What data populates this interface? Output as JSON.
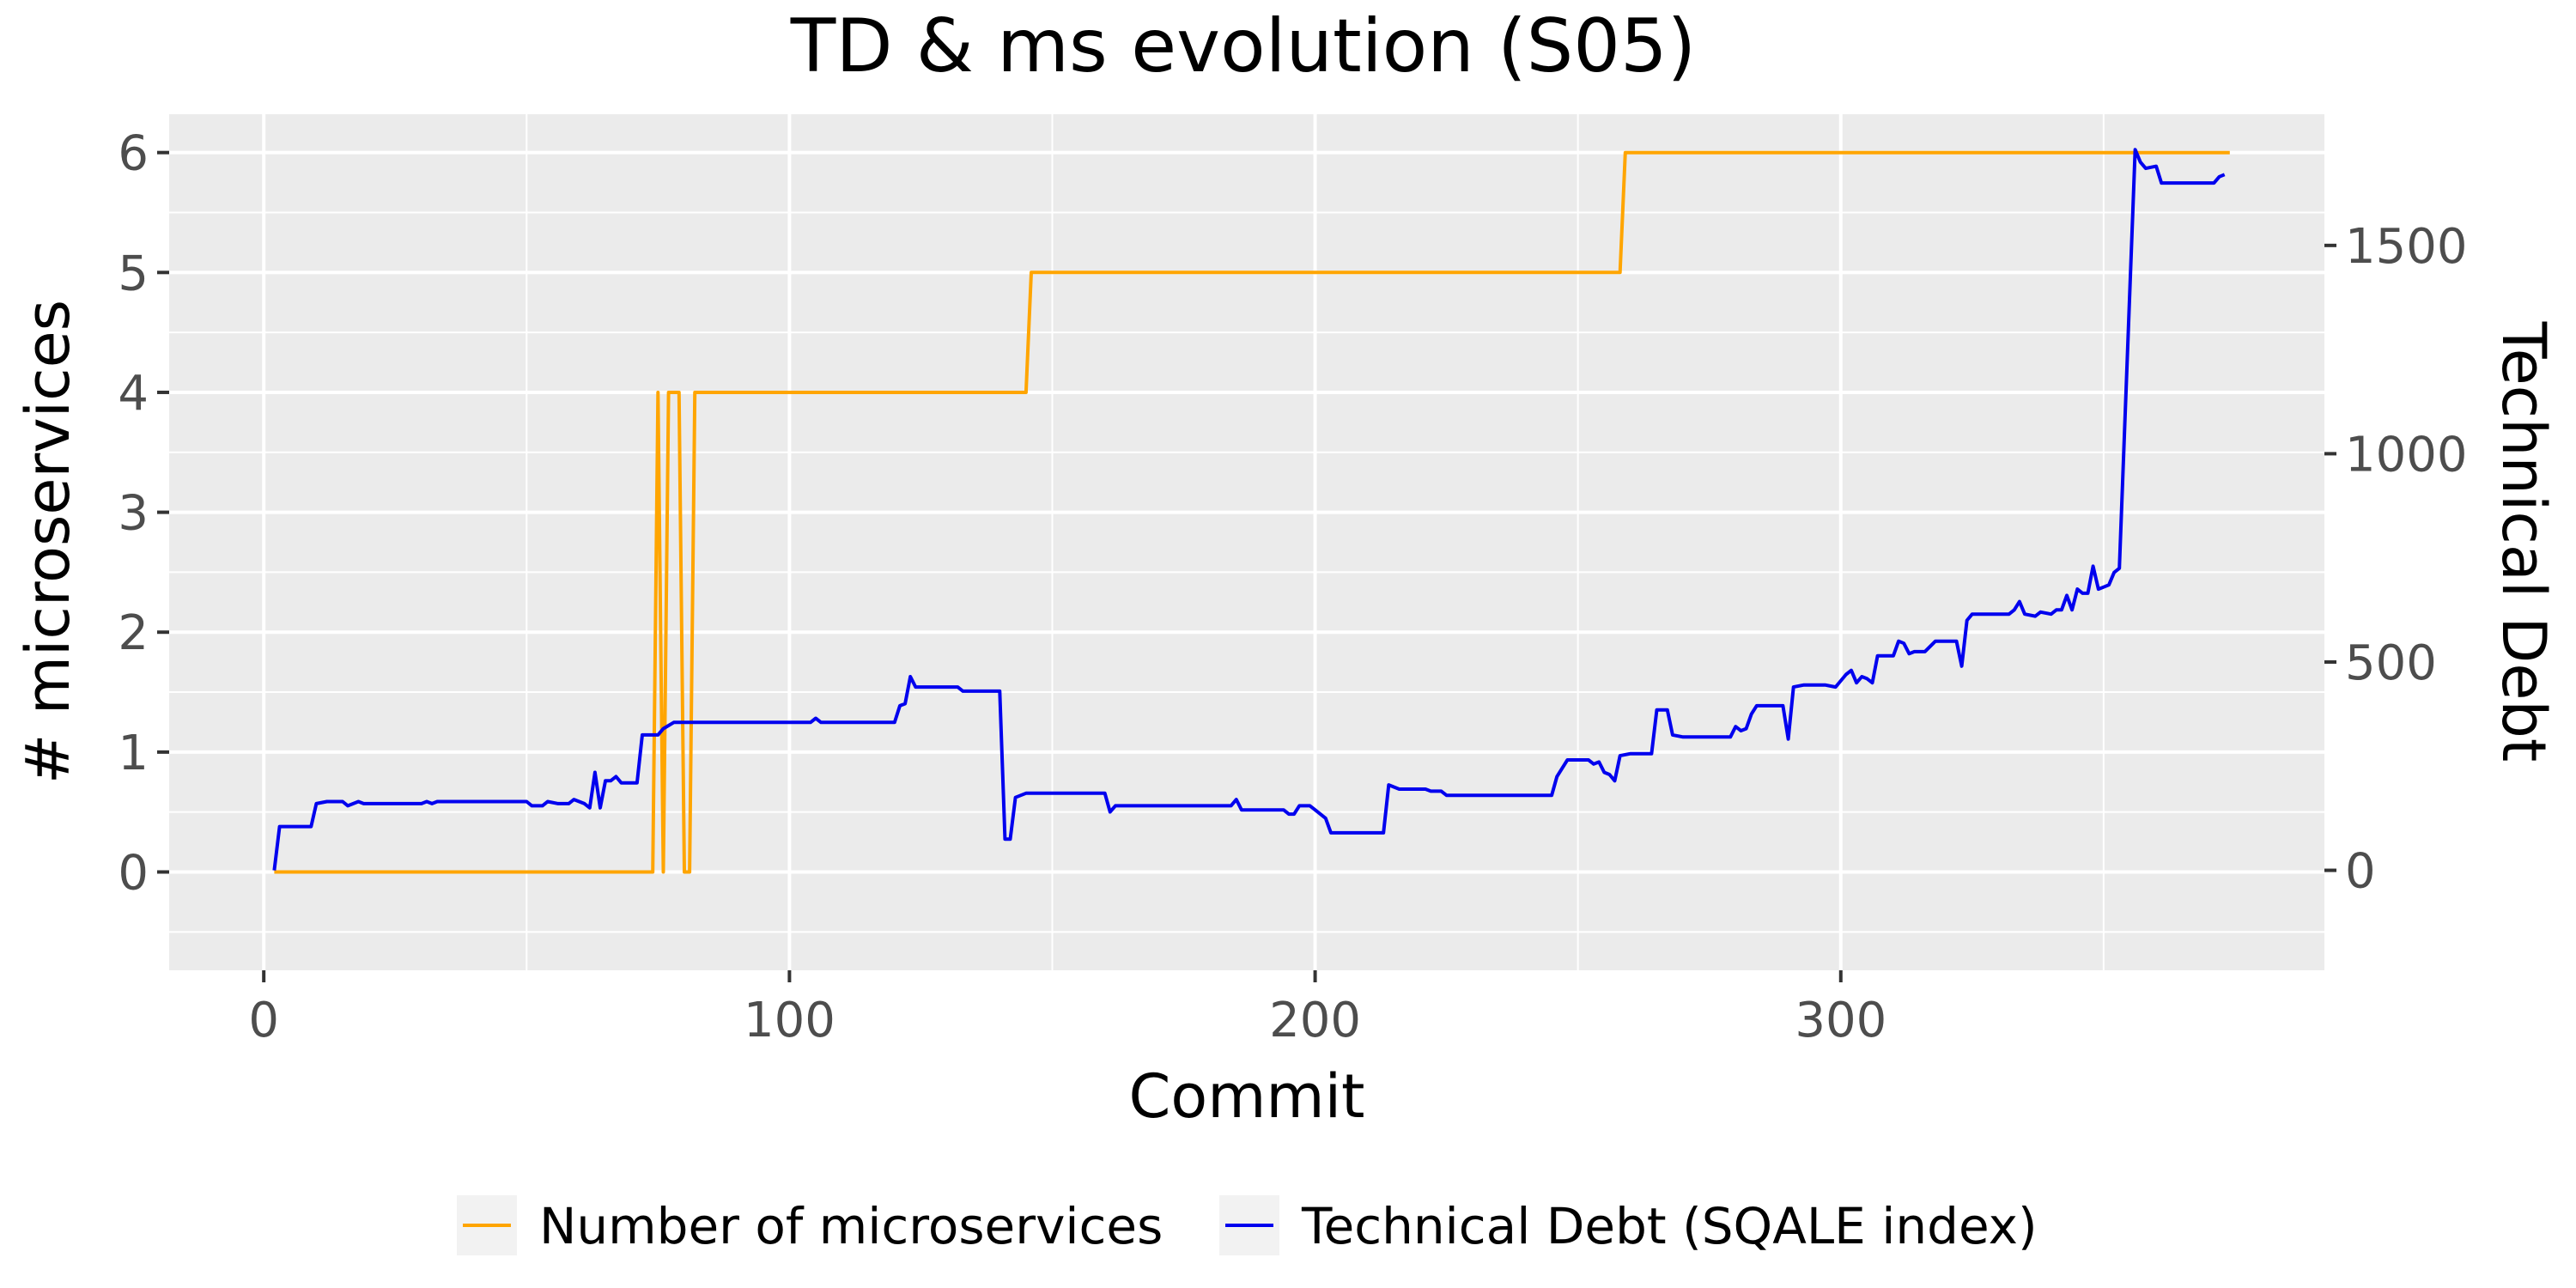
{
  "chart_data": {
    "type": "line",
    "title": "TD & ms evolution (S05)",
    "xlabel": "Commit",
    "ylabel": "# microservices",
    "y2label": "Technical Debt",
    "xlim": [
      -18,
      392
    ],
    "ylim": [
      -0.82,
      6.32
    ],
    "y2lim": [
      -240,
      1815
    ],
    "xticks": [
      0,
      100,
      200,
      300
    ],
    "yticks": [
      0,
      1,
      2,
      3,
      4,
      5,
      6
    ],
    "y2ticks": [
      0,
      500,
      1000,
      1500
    ],
    "grid": true,
    "legend_position": "bottom",
    "series": [
      {
        "name": "Number of microservices",
        "axis": "left",
        "color": "#FFA500",
        "points": [
          [
            2,
            0
          ],
          [
            74,
            0
          ],
          [
            75,
            4
          ],
          [
            76,
            0
          ],
          [
            77,
            4
          ],
          [
            79,
            4
          ],
          [
            80,
            0
          ],
          [
            81,
            0
          ],
          [
            82,
            4
          ],
          [
            145,
            4
          ],
          [
            146,
            5
          ],
          [
            258,
            5
          ],
          [
            259,
            6
          ],
          [
            374,
            6
          ]
        ]
      },
      {
        "name": "Technical Debt (SQALE index)",
        "axis": "right",
        "color": "#0000EE",
        "points": [
          [
            2,
            0
          ],
          [
            3,
            105
          ],
          [
            9,
            105
          ],
          [
            10,
            160
          ],
          [
            12,
            165
          ],
          [
            15,
            165
          ],
          [
            16,
            155
          ],
          [
            18,
            165
          ],
          [
            19,
            160
          ],
          [
            30,
            160
          ],
          [
            31,
            165
          ],
          [
            32,
            160
          ],
          [
            33,
            165
          ],
          [
            50,
            165
          ],
          [
            51,
            155
          ],
          [
            53,
            155
          ],
          [
            54,
            165
          ],
          [
            56,
            160
          ],
          [
            58,
            160
          ],
          [
            59,
            170
          ],
          [
            61,
            160
          ],
          [
            62,
            150
          ],
          [
            63,
            235
          ],
          [
            64,
            150
          ],
          [
            65,
            215
          ],
          [
            66,
            215
          ],
          [
            67,
            225
          ],
          [
            68,
            210
          ],
          [
            71,
            210
          ],
          [
            72,
            325
          ],
          [
            75,
            325
          ],
          [
            76,
            340
          ],
          [
            78,
            355
          ],
          [
            104,
            355
          ],
          [
            105,
            365
          ],
          [
            106,
            355
          ],
          [
            120,
            355
          ],
          [
            121,
            395
          ],
          [
            122,
            400
          ],
          [
            123,
            465
          ],
          [
            124,
            440
          ],
          [
            132,
            440
          ],
          [
            133,
            430
          ],
          [
            140,
            430
          ],
          [
            141,
            75
          ],
          [
            142,
            75
          ],
          [
            143,
            175
          ],
          [
            145,
            185
          ],
          [
            160,
            185
          ],
          [
            161,
            140
          ],
          [
            162,
            155
          ],
          [
            184,
            155
          ],
          [
            185,
            170
          ],
          [
            186,
            145
          ],
          [
            194,
            145
          ],
          [
            195,
            135
          ],
          [
            196,
            135
          ],
          [
            197,
            155
          ],
          [
            199,
            155
          ],
          [
            200,
            145
          ],
          [
            202,
            125
          ],
          [
            203,
            90
          ],
          [
            213,
            90
          ],
          [
            214,
            205
          ],
          [
            216,
            195
          ],
          [
            221,
            195
          ],
          [
            222,
            190
          ],
          [
            224,
            190
          ],
          [
            225,
            180
          ],
          [
            245,
            180
          ],
          [
            246,
            225
          ],
          [
            248,
            265
          ],
          [
            252,
            265
          ],
          [
            253,
            255
          ],
          [
            254,
            260
          ],
          [
            255,
            235
          ],
          [
            256,
            230
          ],
          [
            257,
            215
          ],
          [
            258,
            275
          ],
          [
            260,
            280
          ],
          [
            264,
            280
          ],
          [
            265,
            385
          ],
          [
            267,
            385
          ],
          [
            268,
            325
          ],
          [
            270,
            320
          ],
          [
            279,
            320
          ],
          [
            280,
            345
          ],
          [
            281,
            335
          ],
          [
            282,
            340
          ],
          [
            283,
            375
          ],
          [
            284,
            395
          ],
          [
            289,
            395
          ],
          [
            290,
            315
          ],
          [
            291,
            440
          ],
          [
            293,
            445
          ],
          [
            297,
            445
          ],
          [
            299,
            440
          ],
          [
            301,
            470
          ],
          [
            302,
            480
          ],
          [
            303,
            450
          ],
          [
            304,
            465
          ],
          [
            305,
            460
          ],
          [
            306,
            450
          ],
          [
            307,
            515
          ],
          [
            310,
            515
          ],
          [
            311,
            550
          ],
          [
            312,
            545
          ],
          [
            313,
            520
          ],
          [
            314,
            525
          ],
          [
            316,
            525
          ],
          [
            318,
            550
          ],
          [
            322,
            550
          ],
          [
            323,
            490
          ],
          [
            324,
            600
          ],
          [
            325,
            615
          ],
          [
            332,
            615
          ],
          [
            333,
            625
          ],
          [
            334,
            645
          ],
          [
            335,
            615
          ],
          [
            337,
            610
          ],
          [
            338,
            620
          ],
          [
            340,
            615
          ],
          [
            341,
            625
          ],
          [
            342,
            625
          ],
          [
            343,
            660
          ],
          [
            344,
            625
          ],
          [
            345,
            675
          ],
          [
            346,
            665
          ],
          [
            347,
            665
          ],
          [
            348,
            730
          ],
          [
            349,
            675
          ],
          [
            350,
            680
          ],
          [
            351,
            685
          ],
          [
            352,
            715
          ],
          [
            353,
            725
          ],
          [
            356,
            1730
          ],
          [
            357,
            1700
          ],
          [
            358,
            1685
          ],
          [
            360,
            1690
          ],
          [
            361,
            1650
          ],
          [
            371,
            1650
          ],
          [
            372,
            1665
          ],
          [
            373,
            1670
          ]
        ]
      }
    ]
  }
}
